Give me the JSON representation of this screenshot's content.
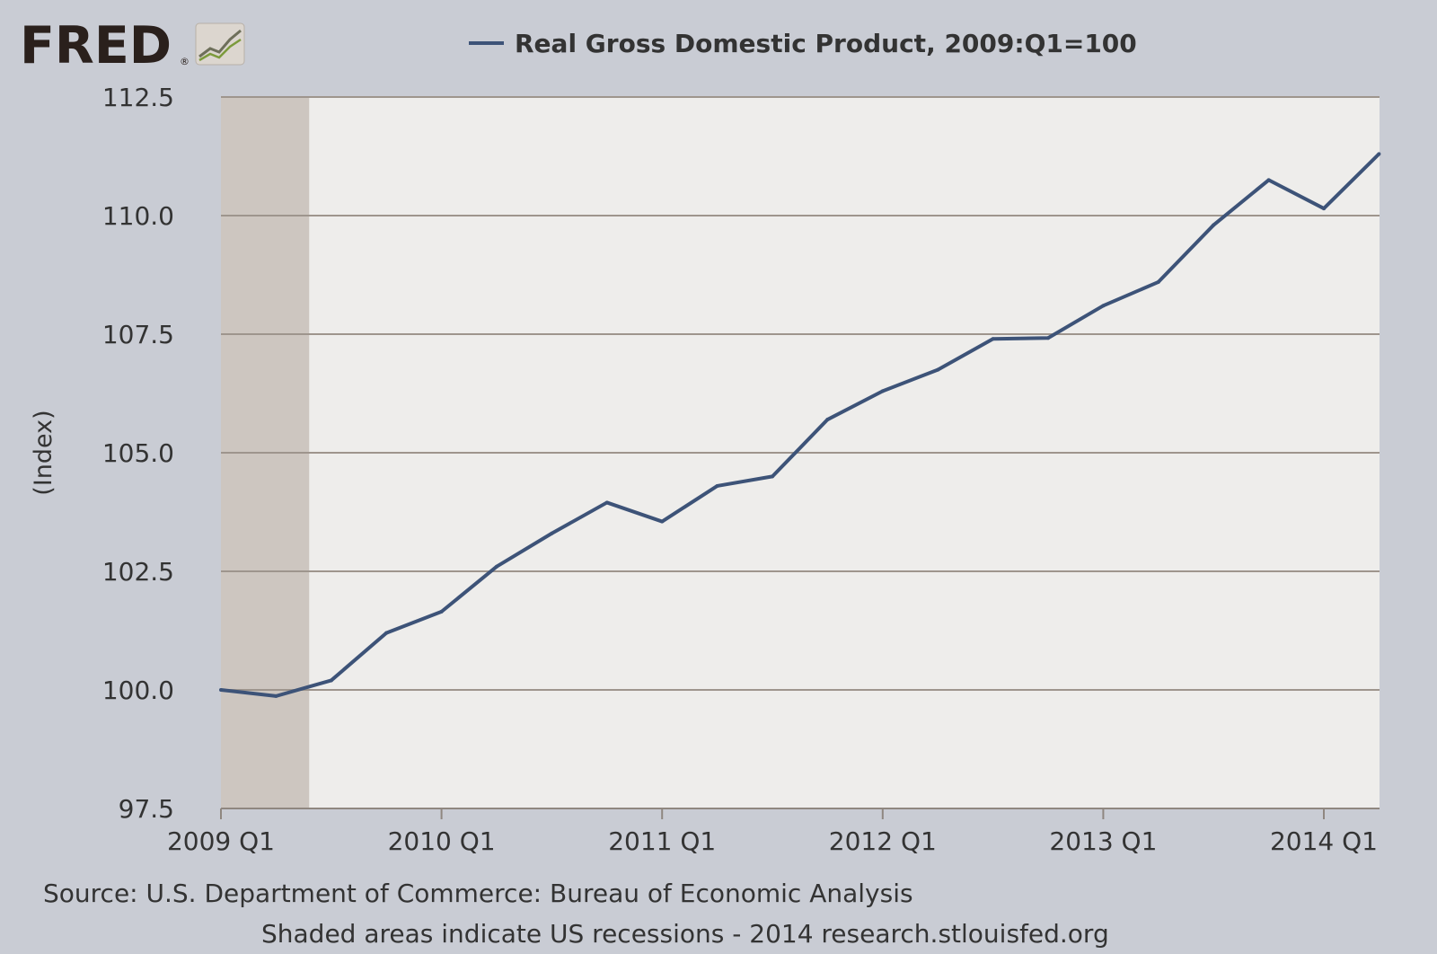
{
  "branding": {
    "logo_text": "FRED",
    "registered_mark": "®",
    "logo_icon": "line-chart-icon"
  },
  "footer": {
    "source": "Source: U.S. Department of Commerce: Bureau of Economic Analysis",
    "note": "Shaded areas indicate US recessions - 2014 research.stlouisfed.org"
  },
  "colors": {
    "background": "#c9ccd4",
    "plot_area": "#eeedeb",
    "recession_shade": "#cdc6c0",
    "line": "#3d5378",
    "gridline": "#9e958d",
    "text": "#333333"
  },
  "chart_data": {
    "type": "line",
    "title": "",
    "legend": {
      "label": "Real Gross Domestic Product, 2009:Q1=100",
      "placement": "top-center"
    },
    "xlabel": "",
    "ylabel": "(Index)",
    "ylim": [
      97.5,
      112.5
    ],
    "yticks": [
      "97.5",
      "100.0",
      "102.5",
      "105.0",
      "107.5",
      "110.0",
      "112.5"
    ],
    "ytick_values": [
      97.5,
      100.0,
      102.5,
      105.0,
      107.5,
      110.0,
      112.5
    ],
    "xticks": [
      "2009 Q1",
      "2010 Q1",
      "2011 Q1",
      "2012 Q1",
      "2013 Q1",
      "2014 Q1"
    ],
    "grid": true,
    "recession_shading": {
      "start": "2009 Q1",
      "end": "2009 Q2"
    },
    "series": [
      {
        "name": "Real Gross Domestic Product, 2009:Q1=100",
        "x": [
          "2009 Q1",
          "2009 Q2",
          "2009 Q3",
          "2009 Q4",
          "2010 Q1",
          "2010 Q2",
          "2010 Q3",
          "2010 Q4",
          "2011 Q1",
          "2011 Q2",
          "2011 Q3",
          "2011 Q4",
          "2012 Q1",
          "2012 Q2",
          "2012 Q3",
          "2012 Q4",
          "2013 Q1",
          "2013 Q2",
          "2013 Q3",
          "2013 Q4",
          "2014 Q1",
          "2014 Q2"
        ],
        "values": [
          100.0,
          99.87,
          100.2,
          101.2,
          101.65,
          102.6,
          103.3,
          103.95,
          103.55,
          104.3,
          104.5,
          105.7,
          106.3,
          106.75,
          107.4,
          107.42,
          108.1,
          108.6,
          109.8,
          110.75,
          110.15,
          111.3
        ]
      }
    ]
  }
}
